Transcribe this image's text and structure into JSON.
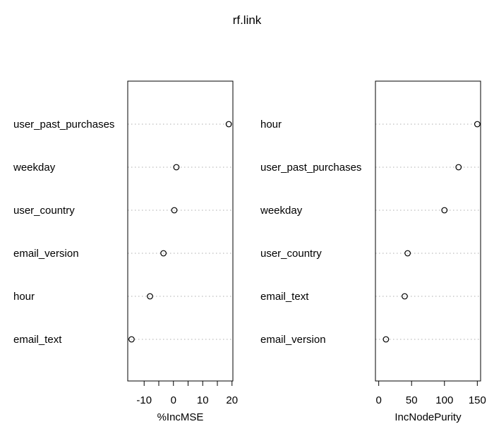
{
  "chart_data": {
    "type": "dotchart",
    "title": "rf.link",
    "panels": [
      {
        "xlabel": "%IncMSE",
        "xlim": [
          -15.6,
          20.3
        ],
        "ticks": [
          -10,
          -5,
          0,
          5,
          10,
          15,
          20
        ],
        "tick_labels": [
          "-10",
          "",
          "0",
          "",
          "10",
          "",
          "20"
        ],
        "rows": [
          {
            "label": "user_past_purchases",
            "value": 18.9
          },
          {
            "label": "weekday",
            "value": 1.0
          },
          {
            "label": "user_country",
            "value": 0.3
          },
          {
            "label": "email_version",
            "value": -3.4
          },
          {
            "label": "hour",
            "value": -8.0
          },
          {
            "label": "email_text",
            "value": -14.3
          }
        ]
      },
      {
        "xlabel": "IncNodePurity",
        "xlim": [
          -5,
          155
        ],
        "ticks": [
          0,
          50,
          100,
          150
        ],
        "tick_labels": [
          "0",
          "50",
          "100",
          "150"
        ],
        "rows": [
          {
            "label": "hour",
            "value": 150
          },
          {
            "label": "user_past_purchases",
            "value": 121.5
          },
          {
            "label": "weekday",
            "value": 100
          },
          {
            "label": "user_country",
            "value": 44
          },
          {
            "label": "email_text",
            "value": 39.5
          },
          {
            "label": "email_version",
            "value": 11
          }
        ]
      }
    ],
    "grid": "dotted horizontal lines per row",
    "marker": "open circle",
    "colors": {
      "ink": "#000000",
      "grid": "#bebebe",
      "background": "#ffffff"
    }
  }
}
